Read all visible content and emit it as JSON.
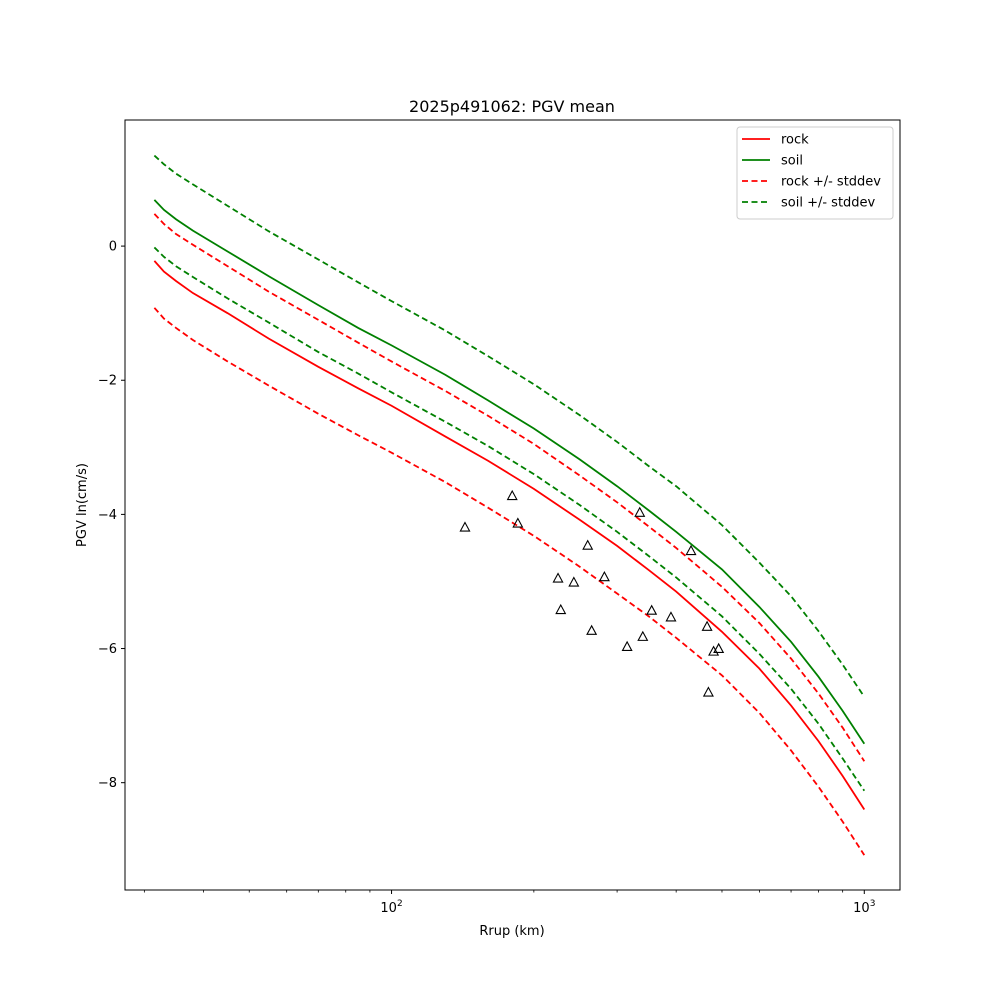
{
  "chart_data": {
    "type": "line",
    "title": "2025p491062: PGV mean",
    "xlabel": "Rrup (km)",
    "ylabel": "PGV ln(cm/s)",
    "xscale": "log",
    "xlim": [
      27.3,
      1190
    ],
    "ylim": [
      -9.6,
      1.88
    ],
    "grid": false,
    "legend": "top-right",
    "x_ticks": [
      {
        "value": 100,
        "base": "10",
        "exp": "2"
      },
      {
        "value": 1000,
        "base": "10",
        "exp": "3"
      }
    ],
    "y_ticks": [
      {
        "value": 0,
        "label": "0"
      },
      {
        "value": -2,
        "label": "−2"
      },
      {
        "value": -4,
        "label": "−4"
      },
      {
        "value": -6,
        "label": "−6"
      },
      {
        "value": -8,
        "label": "−8"
      }
    ],
    "series": [
      {
        "name": "rock",
        "color": "#ff0000",
        "dashed": false,
        "points": [
          [
            31.5,
            -0.22
          ],
          [
            33,
            -0.38
          ],
          [
            35,
            -0.52
          ],
          [
            38,
            -0.7
          ],
          [
            45,
            -1.0
          ],
          [
            55,
            -1.38
          ],
          [
            70,
            -1.8
          ],
          [
            85,
            -2.12
          ],
          [
            100,
            -2.38
          ],
          [
            130,
            -2.84
          ],
          [
            160,
            -3.2
          ],
          [
            200,
            -3.62
          ],
          [
            250,
            -4.08
          ],
          [
            300,
            -4.47
          ],
          [
            350,
            -4.83
          ],
          [
            400,
            -5.15
          ],
          [
            500,
            -5.75
          ],
          [
            600,
            -6.3
          ],
          [
            700,
            -6.85
          ],
          [
            800,
            -7.38
          ],
          [
            900,
            -7.9
          ],
          [
            1000,
            -8.4
          ]
        ]
      },
      {
        "name": "soil",
        "color": "#008000",
        "dashed": false,
        "points": [
          [
            31.5,
            0.69
          ],
          [
            33,
            0.54
          ],
          [
            35,
            0.4
          ],
          [
            38,
            0.23
          ],
          [
            45,
            -0.08
          ],
          [
            55,
            -0.45
          ],
          [
            70,
            -0.88
          ],
          [
            85,
            -1.22
          ],
          [
            100,
            -1.48
          ],
          [
            130,
            -1.92
          ],
          [
            160,
            -2.3
          ],
          [
            200,
            -2.72
          ],
          [
            250,
            -3.18
          ],
          [
            300,
            -3.58
          ],
          [
            350,
            -3.94
          ],
          [
            400,
            -4.26
          ],
          [
            500,
            -4.82
          ],
          [
            600,
            -5.38
          ],
          [
            700,
            -5.9
          ],
          [
            800,
            -6.42
          ],
          [
            900,
            -6.93
          ],
          [
            1000,
            -7.42
          ]
        ]
      },
      {
        "name": "rock +/- stddev",
        "color": "#ff0000",
        "dashed": true,
        "points": [
          [
            31.5,
            0.48
          ],
          [
            33,
            0.33
          ],
          [
            35,
            0.18
          ],
          [
            38,
            0.02
          ],
          [
            45,
            -0.3
          ],
          [
            55,
            -0.68
          ],
          [
            70,
            -1.1
          ],
          [
            85,
            -1.44
          ],
          [
            100,
            -1.72
          ],
          [
            130,
            -2.16
          ],
          [
            160,
            -2.53
          ],
          [
            200,
            -2.95
          ],
          [
            250,
            -3.42
          ],
          [
            300,
            -3.82
          ],
          [
            350,
            -4.18
          ],
          [
            400,
            -4.5
          ],
          [
            500,
            -5.08
          ],
          [
            600,
            -5.62
          ],
          [
            700,
            -6.15
          ],
          [
            800,
            -6.67
          ],
          [
            900,
            -7.18
          ],
          [
            1000,
            -7.68
          ]
        ]
      },
      {
        "name": "",
        "color": "#ff0000",
        "dashed": true,
        "points": [
          [
            31.5,
            -0.92
          ],
          [
            33,
            -1.08
          ],
          [
            35,
            -1.22
          ],
          [
            38,
            -1.4
          ],
          [
            45,
            -1.72
          ],
          [
            55,
            -2.08
          ],
          [
            70,
            -2.5
          ],
          [
            85,
            -2.82
          ],
          [
            100,
            -3.08
          ],
          [
            130,
            -3.52
          ],
          [
            160,
            -3.9
          ],
          [
            200,
            -4.32
          ],
          [
            250,
            -4.78
          ],
          [
            300,
            -5.18
          ],
          [
            350,
            -5.52
          ],
          [
            400,
            -5.84
          ],
          [
            500,
            -6.4
          ],
          [
            600,
            -6.96
          ],
          [
            700,
            -7.52
          ],
          [
            800,
            -8.06
          ],
          [
            900,
            -8.58
          ],
          [
            1000,
            -9.08
          ]
        ]
      },
      {
        "name": "soil +/- stddev",
        "color": "#008000",
        "dashed": true,
        "points": [
          [
            31.5,
            1.35
          ],
          [
            33,
            1.22
          ],
          [
            35,
            1.08
          ],
          [
            38,
            0.92
          ],
          [
            45,
            0.6
          ],
          [
            55,
            0.22
          ],
          [
            70,
            -0.2
          ],
          [
            85,
            -0.54
          ],
          [
            100,
            -0.82
          ],
          [
            130,
            -1.26
          ],
          [
            160,
            -1.64
          ],
          [
            200,
            -2.06
          ],
          [
            250,
            -2.52
          ],
          [
            300,
            -2.92
          ],
          [
            350,
            -3.28
          ],
          [
            400,
            -3.58
          ],
          [
            500,
            -4.16
          ],
          [
            600,
            -4.72
          ],
          [
            700,
            -5.22
          ],
          [
            800,
            -5.74
          ],
          [
            900,
            -6.24
          ],
          [
            1000,
            -6.72
          ]
        ]
      },
      {
        "name": "",
        "color": "#008000",
        "dashed": true,
        "points": [
          [
            31.5,
            -0.02
          ],
          [
            33,
            -0.16
          ],
          [
            35,
            -0.3
          ],
          [
            38,
            -0.46
          ],
          [
            45,
            -0.78
          ],
          [
            55,
            -1.14
          ],
          [
            70,
            -1.58
          ],
          [
            85,
            -1.9
          ],
          [
            100,
            -2.18
          ],
          [
            130,
            -2.62
          ],
          [
            160,
            -2.98
          ],
          [
            200,
            -3.4
          ],
          [
            250,
            -3.86
          ],
          [
            300,
            -4.26
          ],
          [
            350,
            -4.62
          ],
          [
            400,
            -4.94
          ],
          [
            500,
            -5.52
          ],
          [
            600,
            -6.08
          ],
          [
            700,
            -6.6
          ],
          [
            800,
            -7.12
          ],
          [
            900,
            -7.64
          ],
          [
            1000,
            -8.12
          ]
        ]
      }
    ],
    "observations": {
      "marker": "triangle",
      "color": "#000000",
      "points": [
        [
          143,
          -4.19
        ],
        [
          180,
          -3.72
        ],
        [
          185,
          -4.13
        ],
        [
          225,
          -4.95
        ],
        [
          228,
          -5.42
        ],
        [
          243,
          -5.01
        ],
        [
          260,
          -4.46
        ],
        [
          265,
          -5.73
        ],
        [
          282,
          -4.93
        ],
        [
          315,
          -5.97
        ],
        [
          335,
          -3.97
        ],
        [
          340,
          -5.82
        ],
        [
          355,
          -5.43
        ],
        [
          390,
          -5.53
        ],
        [
          430,
          -4.54
        ],
        [
          465,
          -5.67
        ],
        [
          468,
          -6.65
        ],
        [
          480,
          -6.04
        ],
        [
          492,
          -6.0
        ]
      ]
    }
  }
}
